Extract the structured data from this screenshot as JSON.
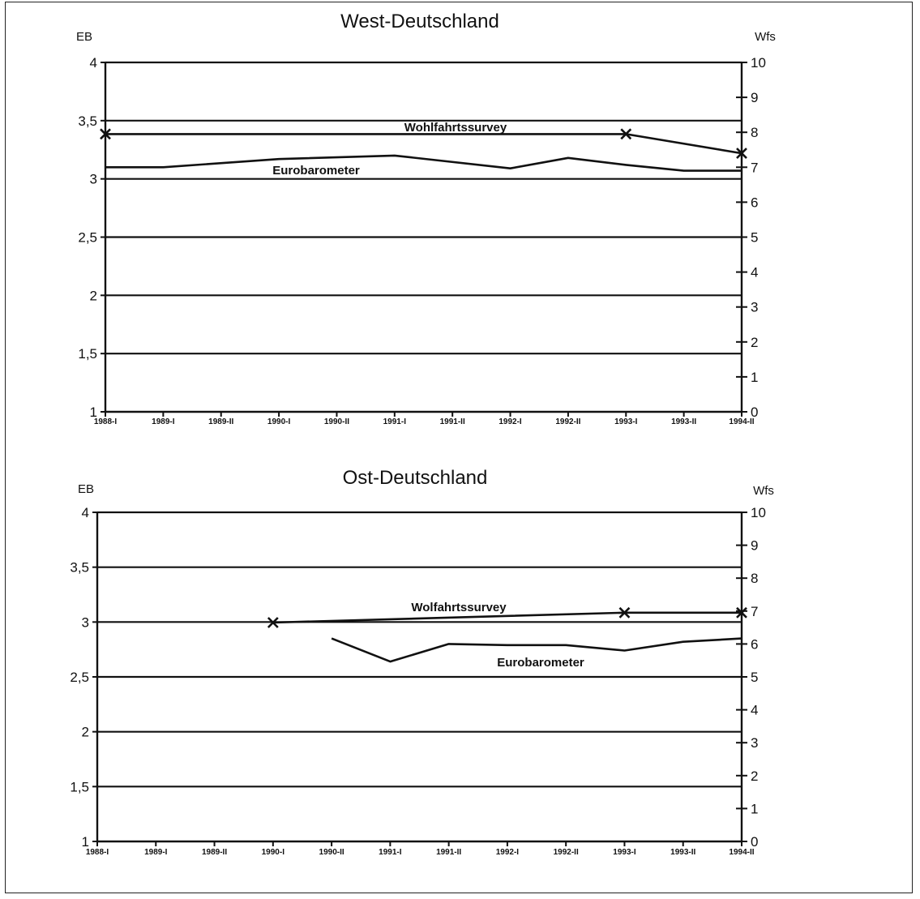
{
  "chart_data": [
    {
      "type": "line",
      "title": "West-Deutschland",
      "left_axis_label": "EB",
      "right_axis_label": "Wfs",
      "categories": [
        "1988-I",
        "1989-I",
        "1989-II",
        "1990-I",
        "1990-II",
        "1991-I",
        "1991-II",
        "1992-I",
        "1992-II",
        "1993-I",
        "1993-II",
        "1994-II"
      ],
      "ylim_left": [
        1,
        4
      ],
      "yticks_left": [
        "1",
        "1,5",
        "2",
        "2,5",
        "3",
        "3,5",
        "4"
      ],
      "ylim_right": [
        0,
        10
      ],
      "yticks_right": [
        "0",
        "1",
        "2",
        "3",
        "4",
        "5",
        "6",
        "7",
        "8",
        "9",
        "10"
      ],
      "grid": true,
      "series": [
        {
          "name": "Eurobarometer",
          "axis": "left",
          "x": [
            "1988-I",
            "1989-I",
            "1990-I",
            "1991-I",
            "1992-I",
            "1992-II",
            "1993-I",
            "1993-II",
            "1994-II"
          ],
          "values": [
            3.1,
            3.1,
            3.17,
            3.2,
            3.09,
            3.18,
            3.12,
            3.07,
            3.07
          ]
        },
        {
          "name": "Wohlfahrtssurvey",
          "axis": "right",
          "x": [
            "1988-I",
            "1993-I",
            "1994-II"
          ],
          "values": [
            7.95,
            7.95,
            7.4
          ]
        }
      ]
    },
    {
      "type": "line",
      "title": "Ost-Deutschland",
      "left_axis_label": "EB",
      "right_axis_label": "Wfs",
      "categories": [
        "1988-I",
        "1989-I",
        "1989-II",
        "1990-I",
        "1990-II",
        "1991-I",
        "1991-II",
        "1992-I",
        "1992-II",
        "1993-I",
        "1993-II",
        "1994-II"
      ],
      "ylim_left": [
        1,
        4
      ],
      "yticks_left": [
        "1",
        "1,5",
        "2",
        "2,5",
        "3",
        "3,5",
        "4"
      ],
      "ylim_right": [
        0,
        10
      ],
      "yticks_right": [
        "0",
        "1",
        "2",
        "3",
        "4",
        "5",
        "6",
        "7",
        "8",
        "9",
        "10"
      ],
      "grid": true,
      "series": [
        {
          "name": "Eurobarometer",
          "axis": "left",
          "x": [
            "1990-II",
            "1991-I",
            "1991-II",
            "1992-I",
            "1992-II",
            "1993-I",
            "1993-II",
            "1994-II"
          ],
          "values": [
            2.85,
            2.64,
            2.8,
            2.79,
            2.79,
            2.74,
            2.82,
            2.85
          ]
        },
        {
          "name": "Wolfahrtssurvey",
          "axis": "right",
          "x": [
            "1990-I",
            "1993-I",
            "1994-II"
          ],
          "values": [
            6.65,
            6.95,
            6.95
          ]
        }
      ]
    }
  ]
}
